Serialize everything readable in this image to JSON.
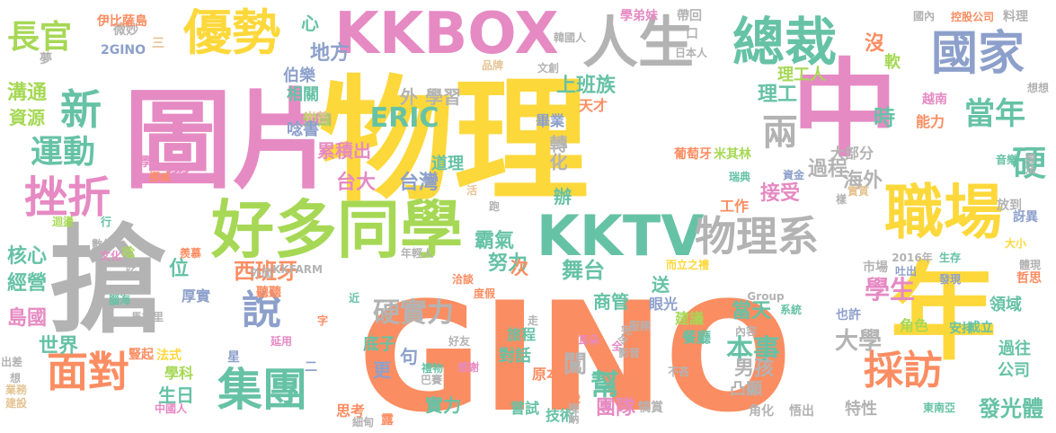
{
  "palette": {
    "orange": "#fb8d62",
    "pink": "#e68ac3",
    "yellow": "#fdd83b",
    "gray": "#b3b3b3",
    "green": "#a6d855",
    "teal": "#66c2a5",
    "blue": "#8da0cb",
    "tan": "#e5c494"
  },
  "words": [
    {
      "text": "GINO",
      "color": "orange"
    },
    {
      "text": "物理",
      "color": "yellow"
    },
    {
      "text": "圖片",
      "color": "pink"
    },
    {
      "text": "中",
      "color": "pink"
    },
    {
      "text": "搶",
      "color": "gray"
    },
    {
      "text": "年",
      "color": "yellow"
    },
    {
      "text": "好多同學",
      "color": "green"
    },
    {
      "text": "KKBOX",
      "color": "pink"
    },
    {
      "text": "KKTV",
      "color": "teal"
    },
    {
      "text": "職場",
      "color": "yellow"
    },
    {
      "text": "總裁",
      "color": "teal"
    },
    {
      "text": "人生",
      "color": "gray"
    },
    {
      "text": "優勢",
      "color": "yellow"
    },
    {
      "text": "國家",
      "color": "blue"
    },
    {
      "text": "物理系",
      "color": "gray"
    },
    {
      "text": "挫折",
      "color": "pink"
    },
    {
      "text": "面對",
      "color": "orange"
    },
    {
      "text": "集團",
      "color": "teal"
    },
    {
      "text": "說",
      "color": "blue"
    },
    {
      "text": "新",
      "color": "teal"
    },
    {
      "text": "採訪",
      "color": "orange"
    },
    {
      "text": "長官",
      "color": "green"
    },
    {
      "text": "運動",
      "color": "teal"
    },
    {
      "text": "當年",
      "color": "teal"
    },
    {
      "text": "硬",
      "color": "teal"
    },
    {
      "text": "兩",
      "color": "gray"
    },
    {
      "text": "硬實力",
      "color": "gray"
    },
    {
      "text": "西班牙",
      "color": "orange"
    },
    {
      "text": "舞台",
      "color": "teal"
    },
    {
      "text": "幫",
      "color": "teal"
    },
    {
      "text": "本事",
      "color": "teal"
    },
    {
      "text": "學生",
      "color": "pink"
    },
    {
      "text": "發光體",
      "color": "teal"
    },
    {
      "text": "ERIC",
      "color": "teal"
    },
    {
      "text": "上班族",
      "color": "teal"
    },
    {
      "text": "溝通",
      "color": "green"
    },
    {
      "text": "資源",
      "color": "green"
    },
    {
      "text": "核心",
      "color": "teal"
    },
    {
      "text": "經營",
      "color": "teal"
    },
    {
      "text": "島國",
      "color": "pink"
    },
    {
      "text": "世界",
      "color": "teal"
    },
    {
      "text": "生日",
      "color": "teal"
    },
    {
      "text": "學科",
      "color": "green"
    },
    {
      "text": "台大",
      "color": "pink"
    },
    {
      "text": "台灣",
      "color": "blue"
    },
    {
      "text": "霸氣",
      "color": "teal"
    },
    {
      "text": "努力",
      "color": "teal"
    },
    {
      "text": "接受",
      "color": "pink"
    },
    {
      "text": "過程",
      "color": "gray"
    },
    {
      "text": "大部分",
      "color": "gray"
    },
    {
      "text": "海外",
      "color": "gray"
    },
    {
      "text": "時",
      "color": "teal"
    },
    {
      "text": "能力",
      "color": "orange"
    },
    {
      "text": "理工",
      "color": "teal"
    },
    {
      "text": "理工人",
      "color": "green"
    },
    {
      "text": "沒",
      "color": "orange"
    },
    {
      "text": "軟",
      "color": "green"
    },
    {
      "text": "心",
      "color": "teal"
    },
    {
      "text": "地方",
      "color": "blue"
    },
    {
      "text": "外",
      "color": "gray"
    },
    {
      "text": "學習",
      "color": "gray"
    },
    {
      "text": "知識",
      "color": "green"
    },
    {
      "text": "伯樂",
      "color": "blue"
    },
    {
      "text": "相關",
      "color": "teal"
    },
    {
      "text": "光芒",
      "color": "tan"
    },
    {
      "text": "唸書",
      "color": "blue"
    },
    {
      "text": "累積出",
      "color": "pink"
    },
    {
      "text": "道理",
      "color": "teal"
    },
    {
      "text": "轉化",
      "color": "gray"
    },
    {
      "text": "畢業",
      "color": "blue"
    },
    {
      "text": "天才",
      "color": "orange"
    },
    {
      "text": "葡萄牙",
      "color": "orange"
    },
    {
      "text": "米其林",
      "color": "green"
    },
    {
      "text": "工作",
      "color": "orange"
    },
    {
      "text": "辦",
      "color": "teal"
    },
    {
      "text": "大學",
      "color": "gray"
    },
    {
      "text": "當天",
      "color": "teal"
    },
    {
      "text": "男孩",
      "color": "gray"
    },
    {
      "text": "商管",
      "color": "teal"
    },
    {
      "text": "眼光",
      "color": "blue"
    },
    {
      "text": "團隊",
      "color": "pink"
    },
    {
      "text": "實力",
      "color": "teal"
    },
    {
      "text": "闖",
      "color": "gray"
    },
    {
      "text": "凸顯",
      "color": "gray"
    },
    {
      "text": "過往",
      "color": "teal"
    },
    {
      "text": "公司",
      "color": "teal"
    },
    {
      "text": "領域",
      "color": "teal"
    },
    {
      "text": "特性",
      "color": "gray"
    },
    {
      "text": "位",
      "color": "teal"
    },
    {
      "text": "厚實",
      "color": "blue"
    },
    {
      "text": "次",
      "color": "orange"
    },
    {
      "text": "送",
      "color": "teal"
    },
    {
      "text": "底子",
      "color": "teal"
    },
    {
      "text": "句",
      "color": "blue"
    },
    {
      "text": "更",
      "color": "blue"
    },
    {
      "text": "對話",
      "color": "teal"
    },
    {
      "text": "思考",
      "color": "orange"
    },
    {
      "text": "嘗試",
      "color": "teal"
    },
    {
      "text": "原本",
      "color": "orange"
    },
    {
      "text": "技術",
      "color": "teal"
    },
    {
      "text": "旅程",
      "color": "teal"
    },
    {
      "text": "建議",
      "color": "green"
    },
    {
      "text": "餐廳",
      "color": "teal"
    },
    {
      "text": "也許",
      "color": "blue"
    },
    {
      "text": "角色",
      "color": "green"
    },
    {
      "text": "安排",
      "color": "teal"
    },
    {
      "text": "成立",
      "color": "teal"
    },
    {
      "text": "微妙",
      "color": "gray"
    },
    {
      "text": "2GINO",
      "color": "blue"
    },
    {
      "text": "伊比薩島",
      "color": "orange"
    },
    {
      "text": "三",
      "color": "tan"
    },
    {
      "text": "夢",
      "color": "gray"
    },
    {
      "text": "學弟妹",
      "color": "pink"
    },
    {
      "text": "帶回",
      "color": "gray"
    },
    {
      "text": "日本人",
      "color": "gray"
    },
    {
      "text": "韓國人",
      "color": "gray"
    },
    {
      "text": "品牌",
      "color": "tan"
    },
    {
      "text": "文創",
      "color": "gray"
    },
    {
      "text": "國內",
      "color": "gray"
    },
    {
      "text": "控股公司",
      "color": "orange"
    },
    {
      "text": "料理",
      "color": "gray"
    },
    {
      "text": "想想",
      "color": "gray"
    },
    {
      "text": "越南",
      "color": "pink"
    },
    {
      "text": "資金",
      "color": "blue"
    },
    {
      "text": "實質",
      "color": "tan"
    },
    {
      "text": "音樂",
      "color": "teal"
    },
    {
      "text": "想法",
      "color": "gray"
    },
    {
      "text": "樣",
      "color": "gray"
    },
    {
      "text": "瑞典",
      "color": "teal"
    },
    {
      "text": "放到",
      "color": "gray"
    },
    {
      "text": "訝異",
      "color": "blue"
    },
    {
      "text": "大小",
      "color": "yellow"
    },
    {
      "text": "體現",
      "color": "gray"
    },
    {
      "text": "生存",
      "color": "teal"
    },
    {
      "text": "發現",
      "color": "blue"
    },
    {
      "text": "哲思",
      "color": "orange"
    },
    {
      "text": "2016年",
      "color": "gray"
    },
    {
      "text": "吐出",
      "color": "blue"
    },
    {
      "text": "市場",
      "color": "gray"
    },
    {
      "text": "而立之禮",
      "color": "yellow"
    },
    {
      "text": "Group",
      "color": "gray"
    },
    {
      "text": "系統",
      "color": "teal"
    },
    {
      "text": "內容",
      "color": "gray"
    },
    {
      "text": "不吝",
      "color": "gray"
    },
    {
      "text": "感謝",
      "color": "pink"
    },
    {
      "text": "禮物",
      "color": "teal"
    },
    {
      "text": "巴賽",
      "color": "gray"
    },
    {
      "text": "好友",
      "color": "gray"
    },
    {
      "text": "耳朵",
      "color": "pink"
    },
    {
      "text": "全",
      "color": "pink"
    },
    {
      "text": "令",
      "color": "gray"
    },
    {
      "text": "完",
      "color": "gray"
    },
    {
      "text": "服務",
      "color": "gray"
    },
    {
      "text": "犒賞",
      "color": "gray"
    },
    {
      "text": "隆納",
      "color": "gray"
    },
    {
      "text": "歲",
      "color": "orange"
    },
    {
      "text": "角化",
      "color": "gray"
    },
    {
      "text": "悟出",
      "color": "gray"
    },
    {
      "text": "東南亞",
      "color": "teal"
    },
    {
      "text": "影音",
      "color": "gray"
    },
    {
      "text": "年輕人",
      "color": "gray"
    },
    {
      "text": "洽談",
      "color": "orange"
    },
    {
      "text": "度假",
      "color": "orange"
    },
    {
      "text": "近",
      "color": "teal"
    },
    {
      "text": "外面",
      "color": "gray"
    },
    {
      "text": "KKFARM",
      "color": "gray"
    },
    {
      "text": "聽聽",
      "color": "orange"
    },
    {
      "text": "羨慕",
      "color": "orange"
    },
    {
      "text": "馬德里",
      "color": "gray"
    },
    {
      "text": "數位",
      "color": "gray"
    },
    {
      "text": "文化",
      "color": "pink"
    },
    {
      "text": "迴盪",
      "color": "green"
    },
    {
      "text": "腦海",
      "color": "teal"
    },
    {
      "text": "延用",
      "color": "pink"
    },
    {
      "text": "豎起",
      "color": "orange"
    },
    {
      "text": "法式",
      "color": "yellow"
    },
    {
      "text": "星",
      "color": "blue"
    },
    {
      "text": "出差",
      "color": "gray"
    },
    {
      "text": "業務",
      "color": "tan"
    },
    {
      "text": "建設",
      "color": "tan"
    },
    {
      "text": "中國人",
      "color": "pink"
    },
    {
      "text": "細甸",
      "color": "gray"
    },
    {
      "text": "露",
      "color": "orange"
    },
    {
      "text": "挪威",
      "color": "orange"
    },
    {
      "text": "科科",
      "color": "pink"
    },
    {
      "text": "學",
      "color": "pink"
    },
    {
      "text": "唸",
      "color": "green"
    },
    {
      "text": "吃",
      "color": "gray"
    },
    {
      "text": "行",
      "color": "teal"
    },
    {
      "text": "活",
      "color": "tan"
    },
    {
      "text": "跑",
      "color": "gray"
    },
    {
      "text": "走",
      "color": "gray"
    },
    {
      "text": "字",
      "color": "orange"
    },
    {
      "text": "想",
      "color": "gray"
    },
    {
      "text": "二",
      "color": "blue"
    },
    {
      "text": "口",
      "color": "gray"
    }
  ]
}
